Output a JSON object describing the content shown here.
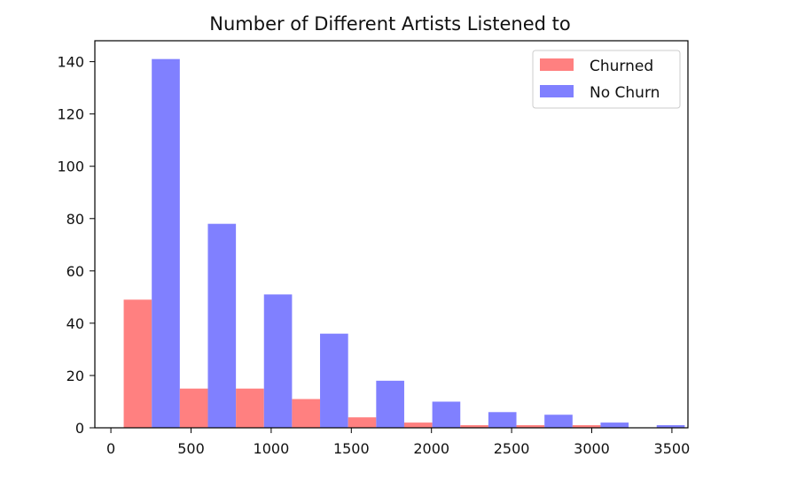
{
  "chart_data": {
    "type": "bar",
    "title": "Number of Different Artists Listened to",
    "xlabel": "",
    "ylabel": "",
    "xlim": [
      -100,
      3600
    ],
    "ylim": [
      0,
      148
    ],
    "bin_edges": [
      80,
      430,
      780,
      1130,
      1480,
      1830,
      2180,
      2530,
      2880,
      3230,
      3580
    ],
    "xticks": [
      0,
      500,
      1000,
      1500,
      2000,
      2500,
      3000,
      3500
    ],
    "yticks": [
      0,
      20,
      40,
      60,
      80,
      100,
      120,
      140
    ],
    "legend_position": "top-right",
    "series": [
      {
        "name": "Churned",
        "color": "#ff8080",
        "values": [
          49,
          15,
          15,
          11,
          4,
          2,
          1,
          1,
          1,
          0
        ]
      },
      {
        "name": "No Churn",
        "color": "#8080ff",
        "values": [
          141,
          78,
          51,
          36,
          18,
          10,
          6,
          5,
          2,
          1
        ]
      }
    ],
    "grid": false
  }
}
